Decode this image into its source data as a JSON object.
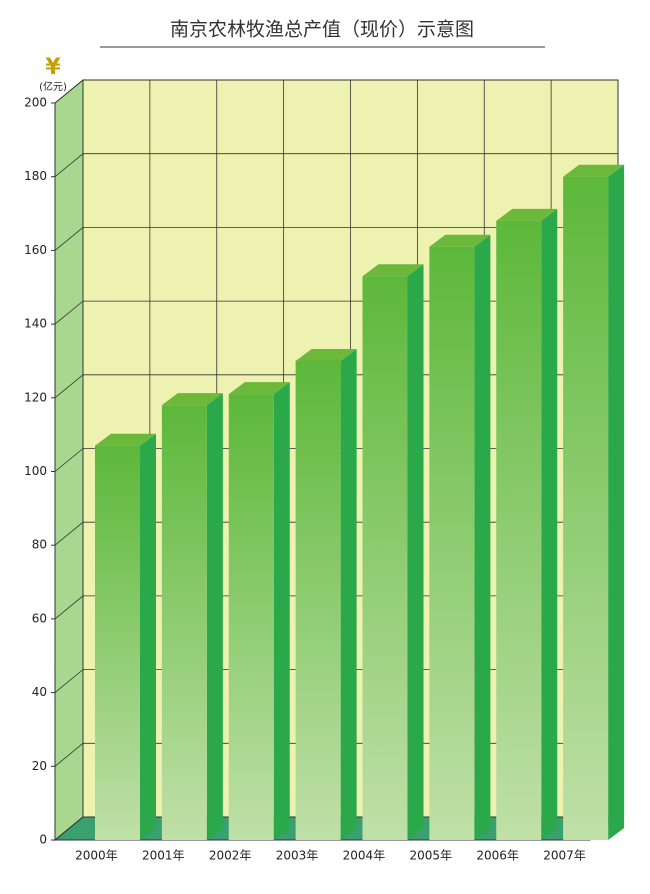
{
  "chart_data": {
    "type": "bar",
    "title": "南京农林牧渔总产值（现价）示意图",
    "currency_symbol": "¥",
    "y_unit": "(亿元)",
    "categories": [
      "2000年",
      "2001年",
      "2002年",
      "2003年",
      "2004年",
      "2005年",
      "2006年",
      "2007年"
    ],
    "values": [
      107,
      118,
      121,
      130,
      153,
      161,
      168,
      180
    ],
    "color": "#5cb83a",
    "ylim": [
      0,
      200
    ],
    "yticks": [
      0,
      20,
      40,
      60,
      80,
      100,
      120,
      140,
      160,
      180,
      200
    ],
    "grid": true
  }
}
